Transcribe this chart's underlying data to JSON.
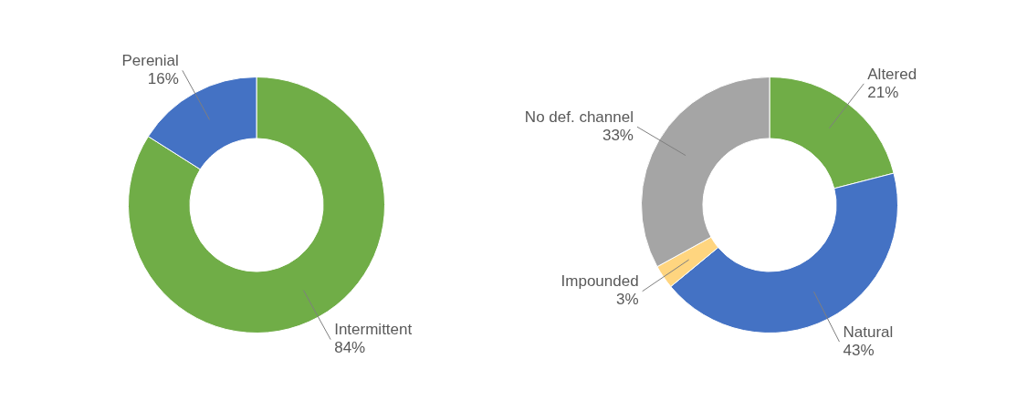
{
  "chart_data": [
    {
      "type": "donut",
      "categories": [
        "Intermittent",
        "Perenial"
      ],
      "values": [
        84,
        16
      ],
      "value_labels": [
        "84%",
        "16%"
      ],
      "colors": [
        "#70ad47",
        "#4472c4"
      ],
      "legend": false
    },
    {
      "type": "donut",
      "categories": [
        "Altered",
        "Natural",
        "Impounded",
        "No def. channel"
      ],
      "values": [
        21,
        43,
        3,
        33
      ],
      "value_labels": [
        "21%",
        "43%",
        "3%",
        "33%"
      ],
      "colors": [
        "#70ad47",
        "#4472c4",
        "#ffd57f",
        "#a5a5a5"
      ],
      "legend": false
    }
  ]
}
